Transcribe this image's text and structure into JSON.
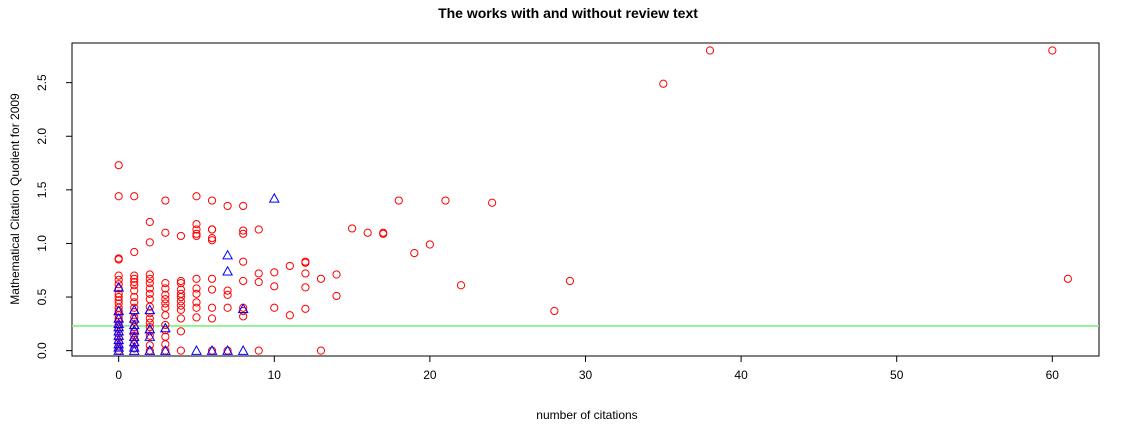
{
  "chart_data": {
    "type": "scatter",
    "title": "The works with and without review text",
    "xlabel": "number of citations",
    "ylabel": "Mathematical Citation Quotient for 2009",
    "xlim": [
      -3,
      63
    ],
    "ylim": [
      -0.05,
      2.87
    ],
    "xticks": [
      0,
      10,
      20,
      30,
      40,
      50,
      60
    ],
    "yticks": [
      0.0,
      0.5,
      1.0,
      1.5,
      2.0,
      2.5
    ],
    "ytick_labels": [
      "0.0",
      "0.5",
      "1.0",
      "1.5",
      "2.0",
      "2.5"
    ],
    "grid": false,
    "reference_line": {
      "orientation": "horizontal",
      "y": 0.23,
      "color": "#7fef7f"
    },
    "series": [
      {
        "marker": "circle",
        "color": "#ff0000",
        "points": [
          [
            0,
            1.73
          ],
          [
            0,
            1.44
          ],
          [
            0,
            0.86
          ],
          [
            0,
            0.85
          ],
          [
            0,
            0.7
          ],
          [
            0,
            0.66
          ],
          [
            0,
            0.62
          ],
          [
            0,
            0.58
          ],
          [
            0,
            0.53
          ],
          [
            0,
            0.5
          ],
          [
            0,
            0.47
          ],
          [
            0,
            0.44
          ],
          [
            0,
            0.4
          ],
          [
            0,
            0.37
          ],
          [
            0,
            0.33
          ],
          [
            0,
            0.3
          ],
          [
            0,
            0.27
          ],
          [
            0,
            0.24
          ],
          [
            0,
            0.2
          ],
          [
            0,
            0.16
          ],
          [
            0,
            0.12
          ],
          [
            0,
            0.08
          ],
          [
            0,
            0.04
          ],
          [
            0,
            0.0
          ],
          [
            1,
            1.44
          ],
          [
            1,
            0.92
          ],
          [
            1,
            0.7
          ],
          [
            1,
            0.67
          ],
          [
            1,
            0.64
          ],
          [
            1,
            0.61
          ],
          [
            1,
            0.56
          ],
          [
            1,
            0.5
          ],
          [
            1,
            0.45
          ],
          [
            1,
            0.4
          ],
          [
            1,
            0.36
          ],
          [
            1,
            0.31
          ],
          [
            1,
            0.27
          ],
          [
            1,
            0.22
          ],
          [
            1,
            0.18
          ],
          [
            1,
            0.14
          ],
          [
            1,
            0.1
          ],
          [
            1,
            0.06
          ],
          [
            1,
            0.02
          ],
          [
            2,
            1.2
          ],
          [
            2,
            1.01
          ],
          [
            2,
            0.71
          ],
          [
            2,
            0.67
          ],
          [
            2,
            0.63
          ],
          [
            2,
            0.58
          ],
          [
            2,
            0.53
          ],
          [
            2,
            0.48
          ],
          [
            2,
            0.41
          ],
          [
            2,
            0.35
          ],
          [
            2,
            0.3
          ],
          [
            2,
            0.26
          ],
          [
            2,
            0.22
          ],
          [
            2,
            0.18
          ],
          [
            2,
            0.14
          ],
          [
            2,
            0.05
          ],
          [
            2,
            0.0
          ],
          [
            3,
            1.4
          ],
          [
            3,
            1.1
          ],
          [
            3,
            0.63
          ],
          [
            3,
            0.58
          ],
          [
            3,
            0.52
          ],
          [
            3,
            0.48
          ],
          [
            3,
            0.44
          ],
          [
            3,
            0.4
          ],
          [
            3,
            0.33
          ],
          [
            3,
            0.24
          ],
          [
            3,
            0.19
          ],
          [
            3,
            0.13
          ],
          [
            3,
            0.06
          ],
          [
            3,
            0.0
          ],
          [
            4,
            1.07
          ],
          [
            4,
            0.65
          ],
          [
            4,
            0.63
          ],
          [
            4,
            0.57
          ],
          [
            4,
            0.53
          ],
          [
            4,
            0.5
          ],
          [
            4,
            0.46
          ],
          [
            4,
            0.42
          ],
          [
            4,
            0.38
          ],
          [
            4,
            0.3
          ],
          [
            4,
            0.18
          ],
          [
            4,
            0.0
          ],
          [
            5,
            1.44
          ],
          [
            5,
            1.18
          ],
          [
            5,
            1.13
          ],
          [
            5,
            1.09
          ],
          [
            5,
            1.07
          ],
          [
            5,
            0.67
          ],
          [
            5,
            0.58
          ],
          [
            5,
            0.53
          ],
          [
            5,
            0.45
          ],
          [
            5,
            0.4
          ],
          [
            5,
            0.31
          ],
          [
            6,
            1.4
          ],
          [
            6,
            1.13
          ],
          [
            6,
            1.13
          ],
          [
            6,
            1.05
          ],
          [
            6,
            1.03
          ],
          [
            6,
            0.67
          ],
          [
            6,
            0.57
          ],
          [
            6,
            0.4
          ],
          [
            6,
            0.3
          ],
          [
            6,
            0.0
          ],
          [
            7,
            1.35
          ],
          [
            7,
            0.56
          ],
          [
            7,
            0.52
          ],
          [
            7,
            0.4
          ],
          [
            7,
            0.0
          ],
          [
            8,
            1.35
          ],
          [
            8,
            1.12
          ],
          [
            8,
            1.09
          ],
          [
            8,
            0.83
          ],
          [
            8,
            0.65
          ],
          [
            8,
            0.4
          ],
          [
            8,
            0.37
          ],
          [
            8,
            0.32
          ],
          [
            9,
            1.13
          ],
          [
            9,
            0.72
          ],
          [
            9,
            0.64
          ],
          [
            9,
            0.0
          ],
          [
            10,
            0.73
          ],
          [
            10,
            0.6
          ],
          [
            10,
            0.4
          ],
          [
            11,
            0.79
          ],
          [
            11,
            0.33
          ],
          [
            12,
            0.83
          ],
          [
            12,
            0.82
          ],
          [
            12,
            0.72
          ],
          [
            12,
            0.59
          ],
          [
            12,
            0.39
          ],
          [
            13,
            0.67
          ],
          [
            13,
            0.0
          ],
          [
            14,
            0.71
          ],
          [
            14,
            0.51
          ],
          [
            15,
            1.14
          ],
          [
            16,
            1.1
          ],
          [
            17,
            1.1
          ],
          [
            17,
            1.09
          ],
          [
            18,
            1.4
          ],
          [
            19,
            0.91
          ],
          [
            20,
            0.99
          ],
          [
            21,
            1.4
          ],
          [
            22,
            0.61
          ],
          [
            24,
            1.38
          ],
          [
            28,
            0.37
          ],
          [
            29,
            0.65
          ],
          [
            35,
            2.49
          ],
          [
            38,
            2.8
          ],
          [
            60,
            2.8
          ],
          [
            61,
            0.67
          ]
        ]
      },
      {
        "marker": "triangle",
        "color": "#0000ff",
        "points": [
          [
            0,
            0.59
          ],
          [
            0,
            0.37
          ],
          [
            0,
            0.3
          ],
          [
            0,
            0.25
          ],
          [
            0,
            0.22
          ],
          [
            0,
            0.18
          ],
          [
            0,
            0.14
          ],
          [
            0,
            0.1
          ],
          [
            0,
            0.06
          ],
          [
            0,
            0.03
          ],
          [
            0,
            0.0
          ],
          [
            1,
            0.38
          ],
          [
            1,
            0.3
          ],
          [
            1,
            0.24
          ],
          [
            1,
            0.19
          ],
          [
            1,
            0.13
          ],
          [
            1,
            0.08
          ],
          [
            1,
            0.03
          ],
          [
            1,
            0.0
          ],
          [
            2,
            0.38
          ],
          [
            2,
            0.2
          ],
          [
            2,
            0.13
          ],
          [
            2,
            0.0
          ],
          [
            3,
            0.21
          ],
          [
            3,
            0.0
          ],
          [
            5,
            0.0
          ],
          [
            6,
            0.0
          ],
          [
            7,
            0.89
          ],
          [
            7,
            0.74
          ],
          [
            7,
            0.0
          ],
          [
            8,
            0.39
          ],
          [
            8,
            0.0
          ],
          [
            10,
            1.42
          ]
        ]
      }
    ]
  }
}
